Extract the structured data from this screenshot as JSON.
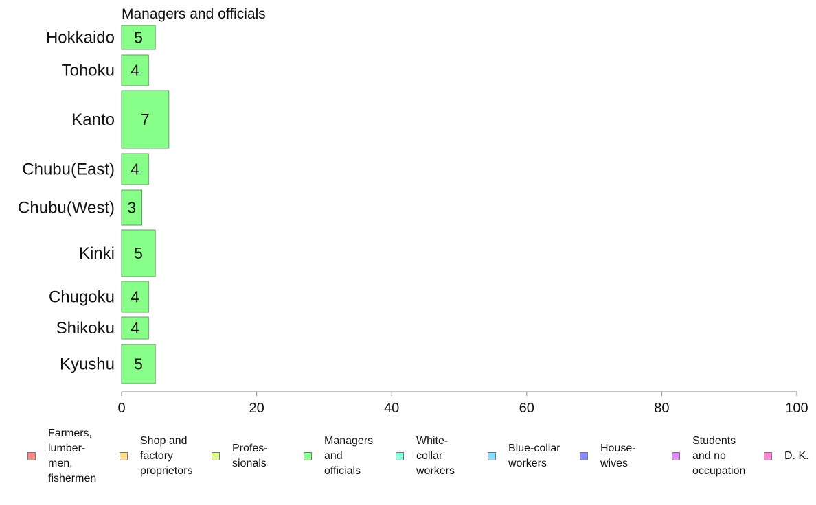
{
  "chart_data": {
    "type": "bar",
    "orientation": "horizontal",
    "title": "Managers and officials",
    "categories": [
      "Hokkaido",
      "Tohoku",
      "Kanto",
      "Chubu(East)",
      "Chubu(West)",
      "Kinki",
      "Chugoku",
      "Shikoku",
      "Kyushu"
    ],
    "values": [
      5,
      4,
      7,
      4,
      3,
      5,
      4,
      4,
      5
    ],
    "xlim": [
      0,
      100
    ],
    "xticks": [
      "0",
      "20",
      "40",
      "60",
      "80",
      "100"
    ],
    "bar_color": "#88ff88",
    "grid": false,
    "legend_position": "bottom",
    "legend": [
      {
        "label": "Farmers,\nlumber-\nmen,\nfishermen",
        "color": "#ff8888"
      },
      {
        "label": "Shop and\nfactory\nproprietors",
        "color": "#ffdd88"
      },
      {
        "label": "Profes-\nsionals",
        "color": "#ddff88"
      },
      {
        "label": "Managers\nand\nofficials",
        "color": "#88ff88"
      },
      {
        "label": "White-\ncollar\nworkers",
        "color": "#88ffdd"
      },
      {
        "label": "Blue-collar\nworkers",
        "color": "#88ddff"
      },
      {
        "label": "House-\nwives",
        "color": "#8888ff"
      },
      {
        "label": "Students\nand no\noccupation",
        "color": "#dd88ff"
      },
      {
        "label": "D. K.",
        "color": "#ff88dd"
      }
    ]
  }
}
